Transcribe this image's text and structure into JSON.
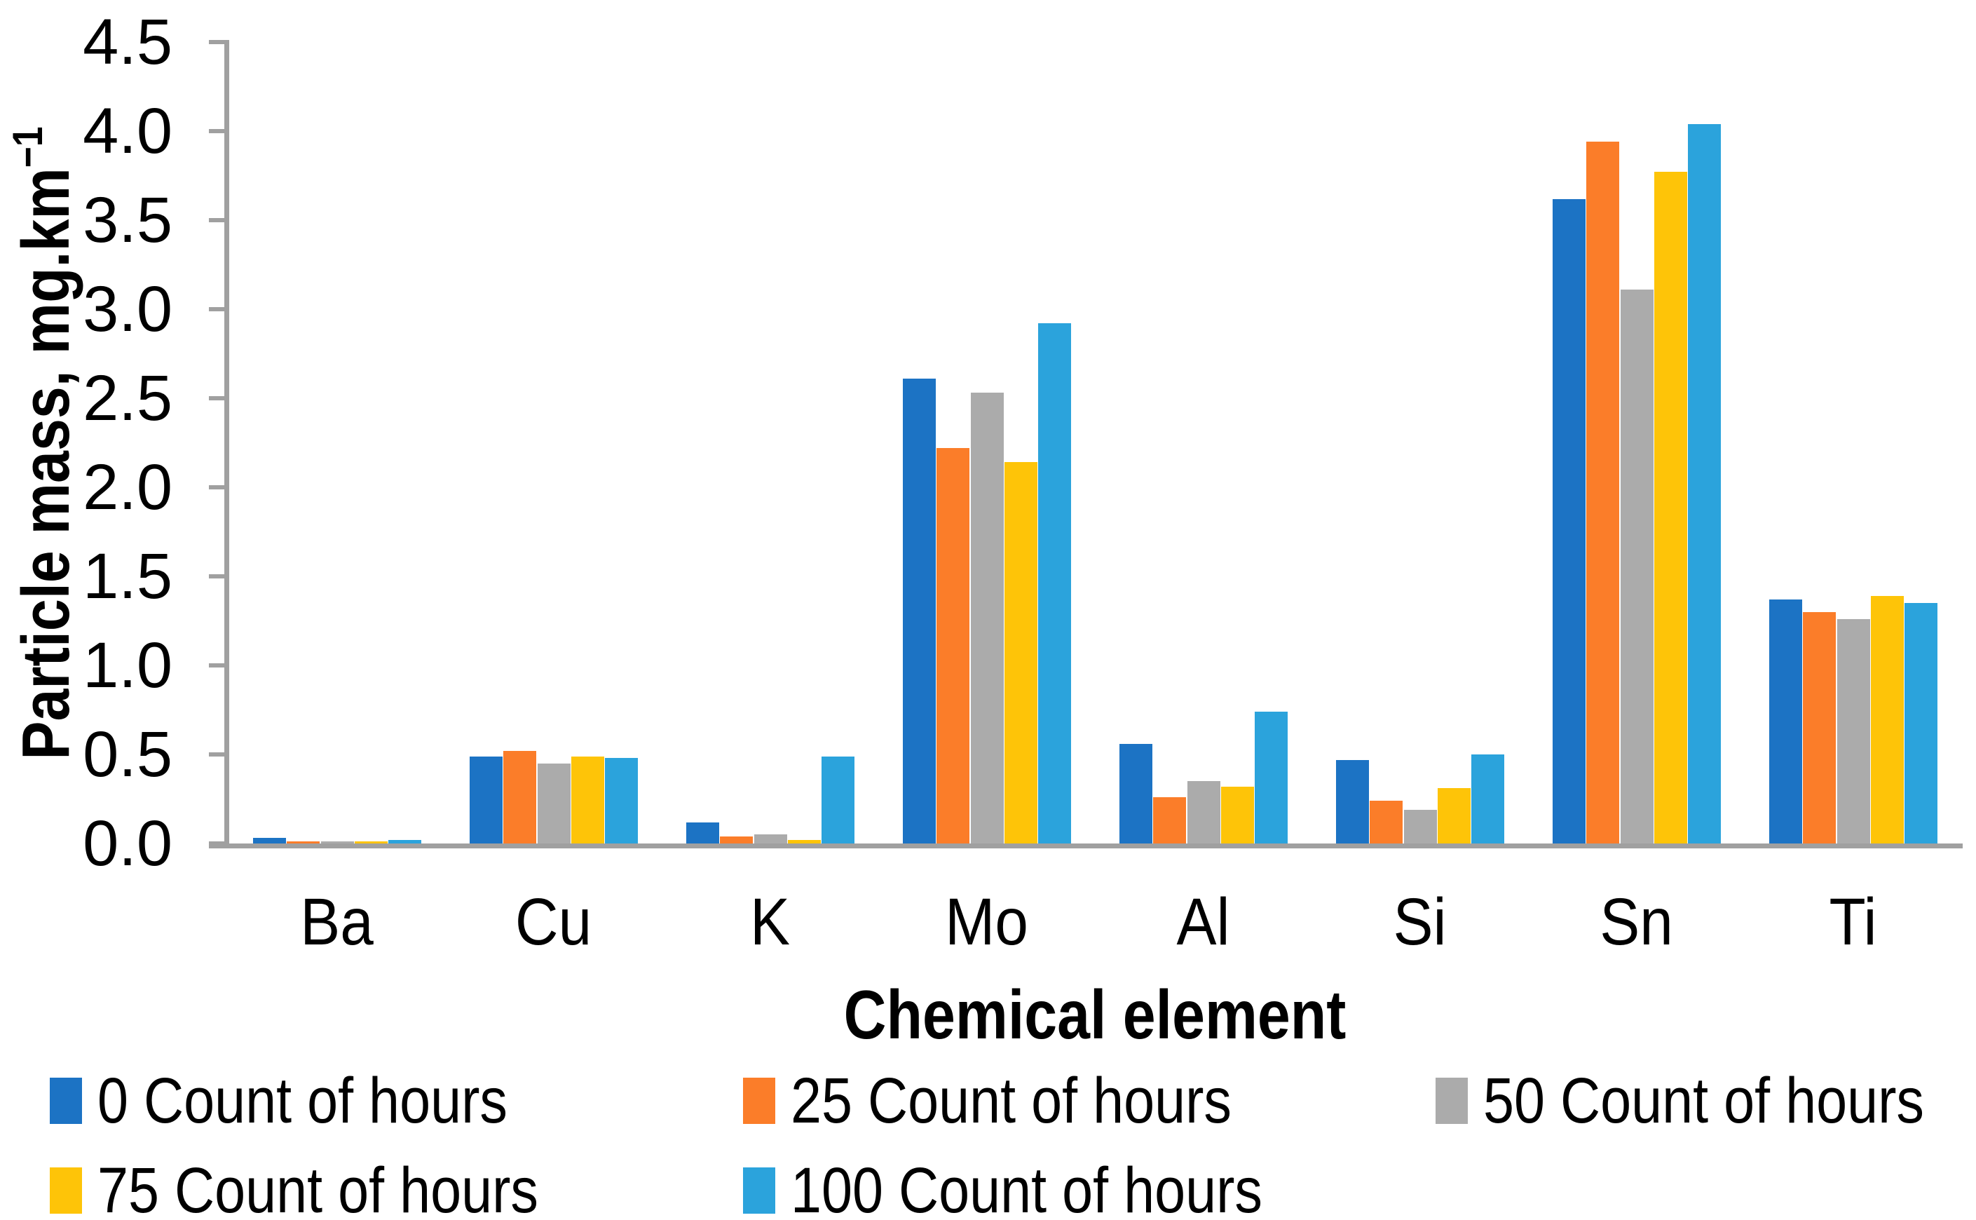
{
  "chart_data": {
    "type": "bar",
    "title": "",
    "xlabel": "Chemical element",
    "ylabel": "Particle mass, mg.km⁻¹",
    "ylabel_main": "Particle mass, mg.km",
    "ylabel_superscript": "−1",
    "categories": [
      "Ba",
      "Cu",
      "K",
      "Mo",
      "Al",
      "Si",
      "Sn",
      "Ti"
    ],
    "series": [
      {
        "name": "0 Count of hours",
        "color": "#1C73C4",
        "values": [
          0.03,
          0.49,
          0.12,
          2.61,
          0.56,
          0.47,
          3.62,
          1.37
        ]
      },
      {
        "name": "25 Count of hours",
        "color": "#FB7D29",
        "values": [
          0.01,
          0.52,
          0.04,
          2.22,
          0.26,
          0.24,
          3.94,
          1.3
        ]
      },
      {
        "name": "50 Count of hours",
        "color": "#ABABAB",
        "values": [
          0.01,
          0.45,
          0.05,
          2.53,
          0.35,
          0.19,
          3.11,
          1.26
        ]
      },
      {
        "name": "75 Count of hours",
        "color": "#FEC408",
        "values": [
          0.01,
          0.49,
          0.02,
          2.14,
          0.32,
          0.31,
          3.77,
          1.39
        ]
      },
      {
        "name": "100 Count of hours",
        "color": "#2BA3DC",
        "values": [
          0.02,
          0.48,
          0.49,
          2.92,
          0.74,
          0.5,
          4.04,
          1.35
        ]
      }
    ],
    "ylim": [
      0,
      4.5
    ],
    "ytick_step": 0.5,
    "yticks": [
      "0.0",
      "0.5",
      "1.0",
      "1.5",
      "2.0",
      "2.5",
      "3.0",
      "3.5",
      "4.0",
      "4.5"
    ],
    "grid": false,
    "legend_position": "bottom",
    "axis_color": "#A0A0A0",
    "text_color": "#000000"
  }
}
